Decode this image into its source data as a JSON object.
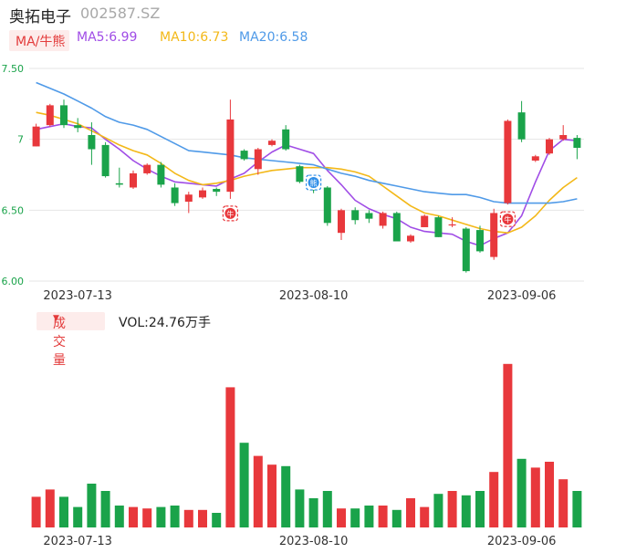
{
  "header": {
    "stock_name": "奥拓电子",
    "stock_code": "002587.SZ"
  },
  "ma_legend": {
    "mode_label": "MA/牛熊",
    "ma5": {
      "label": "MA5:6.99",
      "color": "#a04de6"
    },
    "ma10": {
      "label": "MA10:6.73",
      "color": "#f3b818"
    },
    "ma20": {
      "label": "MA20:6.58",
      "color": "#4f9ae8"
    }
  },
  "volume_legend": {
    "mode_label": "成交量",
    "mode_icon": "triangle-down-icon",
    "value_label": "VOL:24.76万手"
  },
  "colors": {
    "up": "#e8383c",
    "down": "#1aa34a",
    "grid": "#e6e6e6",
    "axis_text": "#666666",
    "price_axis_text": "#1aa34a"
  },
  "markers": [
    {
      "index": 14,
      "type": "bull",
      "icon": "bull-icon",
      "glyph": "牛",
      "color": "#e8383c"
    },
    {
      "index": 20,
      "type": "bear",
      "icon": "bear-icon",
      "glyph": "熊",
      "color": "#2f8ee8"
    },
    {
      "index": 34,
      "type": "bull",
      "icon": "bull-icon",
      "glyph": "牛",
      "color": "#e8383c"
    }
  ],
  "chart_data": [
    {
      "type": "candlestick",
      "ylim": [
        6.0,
        7.5
      ],
      "yticks": [
        "7.50",
        "7",
        "6.50",
        "6.00"
      ],
      "ytick_values": [
        7.5,
        7.0,
        6.5,
        6.0
      ],
      "xtick_labels": [
        "2023-07-13",
        "2023-08-10",
        "2023-09-06"
      ],
      "xtick_index": [
        3,
        20,
        35
      ],
      "grid": true,
      "candles": [
        {
          "o": 6.95,
          "c": 7.09,
          "h": 7.11,
          "l": 6.95
        },
        {
          "o": 7.1,
          "c": 7.24,
          "h": 7.25,
          "l": 7.09
        },
        {
          "o": 7.24,
          "c": 7.1,
          "h": 7.28,
          "l": 7.08
        },
        {
          "o": 7.1,
          "c": 7.08,
          "h": 7.15,
          "l": 7.05
        },
        {
          "o": 7.03,
          "c": 6.93,
          "h": 7.12,
          "l": 6.82
        },
        {
          "o": 6.96,
          "c": 6.74,
          "h": 6.98,
          "l": 6.73
        },
        {
          "o": 6.69,
          "c": 6.68,
          "h": 6.8,
          "l": 6.66
        },
        {
          "o": 6.66,
          "c": 6.76,
          "h": 6.78,
          "l": 6.65
        },
        {
          "o": 6.76,
          "c": 6.82,
          "h": 6.83,
          "l": 6.75
        },
        {
          "o": 6.82,
          "c": 6.68,
          "h": 6.84,
          "l": 6.66
        },
        {
          "o": 6.66,
          "c": 6.55,
          "h": 6.69,
          "l": 6.53
        },
        {
          "o": 6.56,
          "c": 6.61,
          "h": 6.63,
          "l": 6.48
        },
        {
          "o": 6.59,
          "c": 6.64,
          "h": 6.66,
          "l": 6.58
        },
        {
          "o": 6.65,
          "c": 6.63,
          "h": 6.66,
          "l": 6.6
        },
        {
          "o": 6.63,
          "c": 7.14,
          "h": 7.28,
          "l": 6.58
        },
        {
          "o": 6.92,
          "c": 6.86,
          "h": 6.93,
          "l": 6.85
        },
        {
          "o": 6.79,
          "c": 6.93,
          "h": 6.94,
          "l": 6.75
        },
        {
          "o": 6.96,
          "c": 6.99,
          "h": 7.0,
          "l": 6.95
        },
        {
          "o": 7.07,
          "c": 6.93,
          "h": 7.1,
          "l": 6.92
        },
        {
          "o": 6.81,
          "c": 6.7,
          "h": 6.82,
          "l": 6.69
        },
        {
          "o": 6.71,
          "c": 6.64,
          "h": 6.74,
          "l": 6.62
        },
        {
          "o": 6.66,
          "c": 6.41,
          "h": 6.67,
          "l": 6.39
        },
        {
          "o": 6.34,
          "c": 6.5,
          "h": 6.51,
          "l": 6.29
        },
        {
          "o": 6.5,
          "c": 6.43,
          "h": 6.52,
          "l": 6.4
        },
        {
          "o": 6.48,
          "c": 6.44,
          "h": 6.5,
          "l": 6.41
        },
        {
          "o": 6.39,
          "c": 6.48,
          "h": 6.49,
          "l": 6.37
        },
        {
          "o": 6.48,
          "c": 6.28,
          "h": 6.49,
          "l": 6.28
        },
        {
          "o": 6.28,
          "c": 6.32,
          "h": 6.33,
          "l": 6.27
        },
        {
          "o": 6.38,
          "c": 6.46,
          "h": 6.47,
          "l": 6.38
        },
        {
          "o": 6.45,
          "c": 6.31,
          "h": 6.46,
          "l": 6.31
        },
        {
          "o": 6.4,
          "c": 6.4,
          "h": 6.45,
          "l": 6.38
        },
        {
          "o": 6.37,
          "c": 6.07,
          "h": 6.38,
          "l": 6.06
        },
        {
          "o": 6.36,
          "c": 6.21,
          "h": 6.39,
          "l": 6.2
        },
        {
          "o": 6.17,
          "c": 6.48,
          "h": 6.51,
          "l": 6.15
        },
        {
          "o": 6.55,
          "c": 7.13,
          "h": 7.14,
          "l": 6.54
        },
        {
          "o": 7.19,
          "c": 7.0,
          "h": 7.27,
          "l": 6.98
        },
        {
          "o": 6.85,
          "c": 6.88,
          "h": 6.89,
          "l": 6.84
        },
        {
          "o": 6.9,
          "c": 7.0,
          "h": 7.01,
          "l": 6.89
        },
        {
          "o": 7.0,
          "c": 7.03,
          "h": 7.1,
          "l": 6.99
        },
        {
          "o": 7.01,
          "c": 6.94,
          "h": 7.03,
          "l": 6.86
        }
      ],
      "series": [
        {
          "name": "MA5",
          "color": "#a04de6",
          "values": [
            7.07,
            7.09,
            7.11,
            7.09,
            7.08,
            7.0,
            6.93,
            6.85,
            6.79,
            6.74,
            6.7,
            6.69,
            6.68,
            6.67,
            6.72,
            6.76,
            6.84,
            6.91,
            6.96,
            6.93,
            6.9,
            6.78,
            6.68,
            6.57,
            6.51,
            6.47,
            6.44,
            6.38,
            6.35,
            6.34,
            6.33,
            6.28,
            6.25,
            6.3,
            6.34,
            6.46,
            6.7,
            6.92,
            7.0,
            6.99
          ]
        },
        {
          "name": "MA10",
          "color": "#f3b818",
          "values": [
            7.19,
            7.17,
            7.14,
            7.11,
            7.06,
            7.01,
            6.96,
            6.92,
            6.89,
            6.83,
            6.76,
            6.71,
            6.68,
            6.69,
            6.71,
            6.74,
            6.76,
            6.78,
            6.79,
            6.8,
            6.8,
            6.8,
            6.79,
            6.77,
            6.74,
            6.67,
            6.6,
            6.53,
            6.48,
            6.46,
            6.43,
            6.4,
            6.37,
            6.35,
            6.34,
            6.38,
            6.46,
            6.57,
            6.66,
            6.73
          ]
        },
        {
          "name": "MA20",
          "color": "#4f9ae8",
          "values": [
            7.4,
            7.36,
            7.32,
            7.27,
            7.22,
            7.16,
            7.12,
            7.1,
            7.07,
            7.02,
            6.97,
            6.92,
            6.91,
            6.9,
            6.89,
            6.87,
            6.86,
            6.85,
            6.84,
            6.83,
            6.82,
            6.79,
            6.76,
            6.74,
            6.71,
            6.69,
            6.67,
            6.65,
            6.63,
            6.62,
            6.61,
            6.61,
            6.59,
            6.56,
            6.55,
            6.55,
            6.55,
            6.55,
            6.56,
            6.58
          ]
        }
      ]
    },
    {
      "type": "bar",
      "title": "成交量",
      "ylim": [
        0,
        11
      ],
      "xtick_labels": [
        "2023-07-13",
        "2023-08-10",
        "2023-09-06"
      ],
      "xtick_index": [
        3,
        20,
        35
      ],
      "values": [
        2.1,
        2.6,
        2.1,
        1.4,
        3.0,
        2.5,
        1.5,
        1.4,
        1.3,
        1.4,
        1.5,
        1.2,
        1.2,
        1.0,
        9.6,
        5.8,
        4.9,
        4.3,
        4.2,
        2.6,
        2.0,
        2.5,
        1.3,
        1.3,
        1.5,
        1.5,
        1.2,
        2.0,
        1.4,
        2.3,
        2.5,
        2.2,
        2.5,
        3.8,
        11.2,
        4.7,
        4.1,
        4.5,
        3.3,
        2.5
      ]
    }
  ]
}
